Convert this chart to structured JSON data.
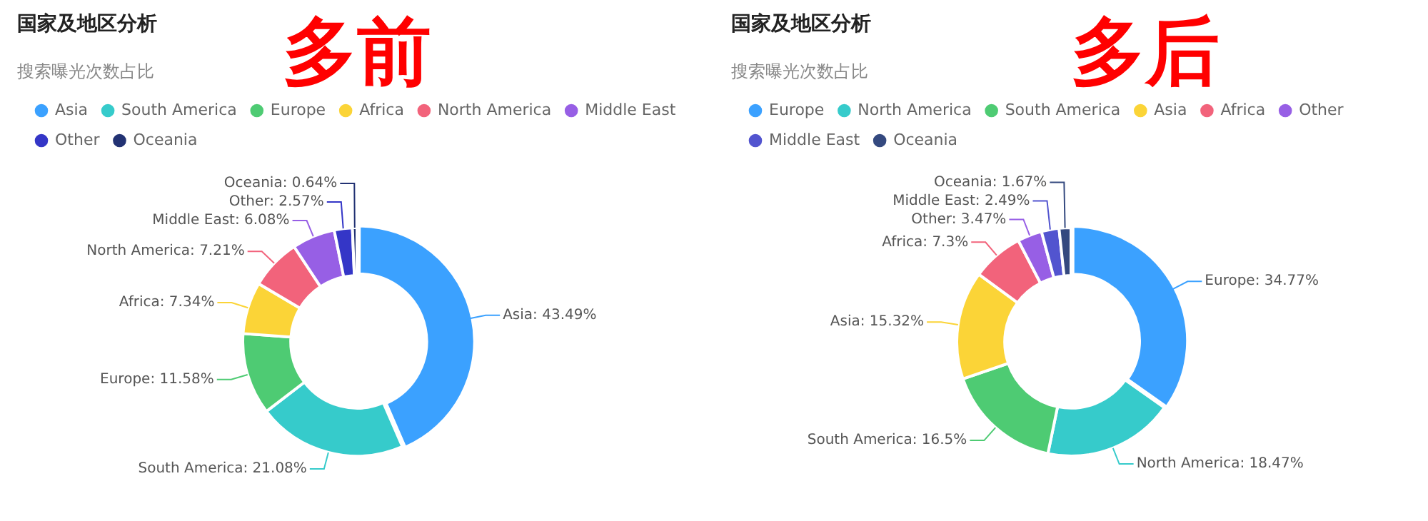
{
  "chart_data": [
    {
      "type": "donut",
      "title": "国家及地区分析",
      "subtitle": "搜索曝光次数占比",
      "annotations": [
        "多前"
      ],
      "legend": "top",
      "categories": [
        "Asia",
        "South America",
        "Europe",
        "Africa",
        "North America",
        "Middle East",
        "Other",
        "Oceania"
      ],
      "values": [
        43.49,
        21.08,
        11.58,
        7.34,
        7.21,
        6.08,
        2.57,
        0.64
      ],
      "colors": [
        "#3ba1ff",
        "#36cbcb",
        "#4ecb73",
        "#fbd437",
        "#f2637b",
        "#975fe5",
        "#3436c7",
        "#223273"
      ],
      "value_labels": [
        "Asia: 43.49%",
        "South America: 21.08%",
        "Europe: 11.58%",
        "Africa: 7.34%",
        "North America: 7.21%",
        "Middle East: 6.08%",
        "Other: 2.57%",
        "Oceania: 0.64%"
      ]
    },
    {
      "type": "donut",
      "title": "国家及地区分析",
      "subtitle": "搜索曝光次数占比",
      "annotations": [
        "多后"
      ],
      "legend": "top",
      "categories": [
        "Europe",
        "North America",
        "South America",
        "Asia",
        "Africa",
        "Other",
        "Middle East",
        "Oceania"
      ],
      "values": [
        34.77,
        18.47,
        16.5,
        15.32,
        7.3,
        3.47,
        2.49,
        1.67
      ],
      "colors": [
        "#3ba1ff",
        "#36cbcb",
        "#4ecb73",
        "#fbd437",
        "#f2637b",
        "#975fe5",
        "#5254cf",
        "#34497f"
      ],
      "value_labels": [
        "Europe: 34.77%",
        "North America: 18.47%",
        "South America: 16.5%",
        "Asia: 15.32%",
        "Africa: 7.3%",
        "Other: 3.47%",
        "Middle East: 2.49%",
        "Oceania: 1.67%"
      ]
    }
  ]
}
